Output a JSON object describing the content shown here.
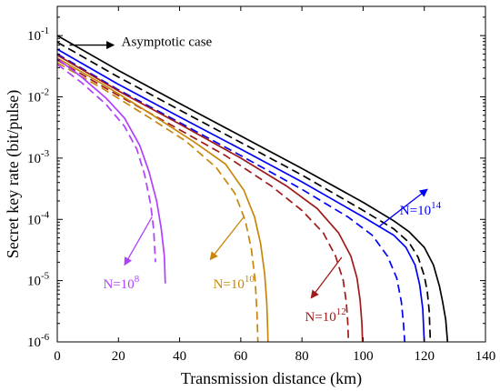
{
  "chart_data": {
    "type": "line",
    "xlabel": "Transmission distance (km)",
    "ylabel": "Secret key rate (bit/pulse)",
    "xlim": [
      0,
      140
    ],
    "ylim": [
      1e-06,
      0.3
    ],
    "yscale": "log",
    "grid": false,
    "x_ticks": [
      0,
      20,
      40,
      60,
      80,
      100,
      120,
      140
    ],
    "x_tick_labels": [
      "0",
      "20",
      "40",
      "60",
      "80",
      "100",
      "120",
      "140"
    ],
    "y_ticks": [
      1e-06,
      1e-05,
      0.0001,
      0.001,
      0.01,
      0.1
    ],
    "y_tick_labels": [
      {
        "base": "10",
        "exp": "-6"
      },
      {
        "base": "10",
        "exp": "-5"
      },
      {
        "base": "10",
        "exp": "-4"
      },
      {
        "base": "10",
        "exp": "-3"
      },
      {
        "base": "10",
        "exp": "-2"
      },
      {
        "base": "10",
        "exp": "-1"
      }
    ],
    "series": [
      {
        "color": "#000000",
        "dash": false,
        "points": [
          [
            0,
            0.1
          ],
          [
            20,
            0.027
          ],
          [
            40,
            0.0078
          ],
          [
            60,
            0.0023
          ],
          [
            80,
            0.00068
          ],
          [
            100,
            0.00019
          ],
          [
            110,
            9.5e-05
          ],
          [
            115,
            6.3e-05
          ],
          [
            120,
            3.5e-05
          ],
          [
            123,
            1.8e-05
          ],
          [
            125,
            8e-06
          ],
          [
            126,
            4.5e-06
          ],
          [
            127,
            2.3e-06
          ],
          [
            127.6,
            1e-06
          ]
        ]
      },
      {
        "color": "#000000",
        "dash": true,
        "points": [
          [
            0,
            0.078
          ],
          [
            20,
            0.021
          ],
          [
            40,
            0.0061
          ],
          [
            60,
            0.0018
          ],
          [
            80,
            0.00053
          ],
          [
            100,
            0.00014
          ],
          [
            110,
            7e-05
          ],
          [
            115,
            4.2e-05
          ],
          [
            118,
            2.4e-05
          ],
          [
            120,
            1.2e-05
          ],
          [
            121,
            6.5e-06
          ],
          [
            121.6,
            3.2e-06
          ],
          [
            122,
            1e-06
          ]
        ]
      },
      {
        "color": "#0000ff",
        "dash": false,
        "points": [
          [
            0,
            0.06
          ],
          [
            20,
            0.016
          ],
          [
            40,
            0.0047
          ],
          [
            60,
            0.0014
          ],
          [
            80,
            0.00041
          ],
          [
            100,
            0.00011
          ],
          [
            110,
            5.5e-05
          ],
          [
            114,
            3.5e-05
          ],
          [
            117,
            1.8e-05
          ],
          [
            118.5,
            8.5e-06
          ],
          [
            119.5,
            3.5e-06
          ],
          [
            120,
            1e-06
          ]
        ]
      },
      {
        "color": "#0000ff",
        "dash": true,
        "points": [
          [
            0,
            0.05
          ],
          [
            20,
            0.013
          ],
          [
            40,
            0.0038
          ],
          [
            60,
            0.0011
          ],
          [
            80,
            0.00031
          ],
          [
            95,
            0.00011
          ],
          [
            103,
            5.5e-05
          ],
          [
            108,
            2.5e-05
          ],
          [
            111,
            1.1e-05
          ],
          [
            112.5,
            4.5e-06
          ],
          [
            113.2,
            2e-06
          ],
          [
            113.6,
            1e-06
          ]
        ]
      },
      {
        "color": "#a01a1a",
        "dash": false,
        "points": [
          [
            0,
            0.048
          ],
          [
            20,
            0.0125
          ],
          [
            40,
            0.0036
          ],
          [
            60,
            0.001
          ],
          [
            75,
            0.00035
          ],
          [
            85,
            0.00015
          ],
          [
            92,
            6e-05
          ],
          [
            96,
            2.5e-05
          ],
          [
            98,
            1.1e-05
          ],
          [
            99,
            4.8e-06
          ],
          [
            99.6,
            2e-06
          ],
          [
            99.8,
            1e-06
          ]
        ]
      },
      {
        "color": "#a01a1a",
        "dash": true,
        "points": [
          [
            0,
            0.04
          ],
          [
            20,
            0.0105
          ],
          [
            40,
            0.0029
          ],
          [
            55,
            0.0011
          ],
          [
            70,
            0.00035
          ],
          [
            80,
            0.00014
          ],
          [
            87,
            6e-05
          ],
          [
            91,
            2.5e-05
          ],
          [
            93.5,
            1e-05
          ],
          [
            94.5,
            4.5e-06
          ],
          [
            95,
            2e-06
          ],
          [
            95.2,
            1e-06
          ]
        ]
      },
      {
        "color": "#c8860a",
        "dash": false,
        "points": [
          [
            0,
            0.043
          ],
          [
            15,
            0.016
          ],
          [
            30,
            0.0055
          ],
          [
            45,
            0.0018
          ],
          [
            55,
            0.0008
          ],
          [
            61,
            0.0003
          ],
          [
            64.5,
            0.00011
          ],
          [
            66.5,
            4e-05
          ],
          [
            67.8,
            1.3e-05
          ],
          [
            68.5,
            4.2e-06
          ],
          [
            68.8,
            1.5e-06
          ],
          [
            68.9,
            1e-06
          ]
        ]
      },
      {
        "color": "#c8860a",
        "dash": true,
        "points": [
          [
            0,
            0.036
          ],
          [
            15,
            0.0135
          ],
          [
            30,
            0.0046
          ],
          [
            42,
            0.0019
          ],
          [
            52,
            0.0007
          ],
          [
            58,
            0.00027
          ],
          [
            61.5,
            9.5e-05
          ],
          [
            63.5,
            3.2e-05
          ],
          [
            64.7,
            1e-05
          ],
          [
            65.3,
            3e-06
          ],
          [
            65.6,
            1e-06
          ]
        ]
      },
      {
        "color": "#b040ff",
        "dash": false,
        "points": [
          [
            0,
            0.042
          ],
          [
            8,
            0.021
          ],
          [
            16,
            0.0095
          ],
          [
            22,
            0.0045
          ],
          [
            27,
            0.0016
          ],
          [
            30,
            0.0006
          ],
          [
            32.5,
            0.0002
          ],
          [
            34,
            7e-05
          ],
          [
            35,
            2.5e-05
          ],
          [
            35.3,
            9e-06
          ]
        ]
      },
      {
        "color": "#b040ff",
        "dash": true,
        "points": [
          [
            0,
            0.034
          ],
          [
            8,
            0.017
          ],
          [
            16,
            0.0075
          ],
          [
            22,
            0.0033
          ],
          [
            26,
            0.0014
          ],
          [
            28.5,
            0.00055
          ],
          [
            30.5,
            0.00018
          ],
          [
            31.5,
            7e-05
          ],
          [
            32.1,
            2e-05
          ]
        ]
      }
    ],
    "annotations": [
      {
        "text": "Asymptotic case",
        "color": "#000000",
        "label_at": [
          21,
          0.068
        ],
        "arrow_from": [
          4,
          0.07
        ],
        "arrow_to": [
          18.5,
          0.07
        ]
      },
      {
        "text": {
          "base": "N=10",
          "exp": "14"
        },
        "color": "#0000ff",
        "label_at": [
          112,
          0.00012
        ],
        "arrow_from": [
          105,
          7.5e-05
        ],
        "arrow_to": [
          121,
          0.00031
        ]
      },
      {
        "text": {
          "base": "N=10",
          "exp": "12"
        },
        "color": "#a01a1a",
        "label_at": [
          81,
          2.2e-06
        ],
        "arrow_from": [
          93,
          2.4e-05
        ],
        "arrow_to": [
          83,
          5.2e-06
        ]
      },
      {
        "text": {
          "base": "N=10",
          "exp": "10"
        },
        "color": "#c8860a",
        "label_at": [
          51,
          7.5e-06
        ],
        "arrow_from": [
          61,
          0.00011
        ],
        "arrow_to": [
          50,
          2.2e-05
        ]
      },
      {
        "text": {
          "base": "N=10",
          "exp": "8"
        },
        "color": "#b040ff",
        "label_at": [
          15,
          7.5e-06
        ],
        "arrow_from": [
          31,
          0.00011
        ],
        "arrow_to": [
          22,
          1.8e-05
        ]
      }
    ]
  }
}
